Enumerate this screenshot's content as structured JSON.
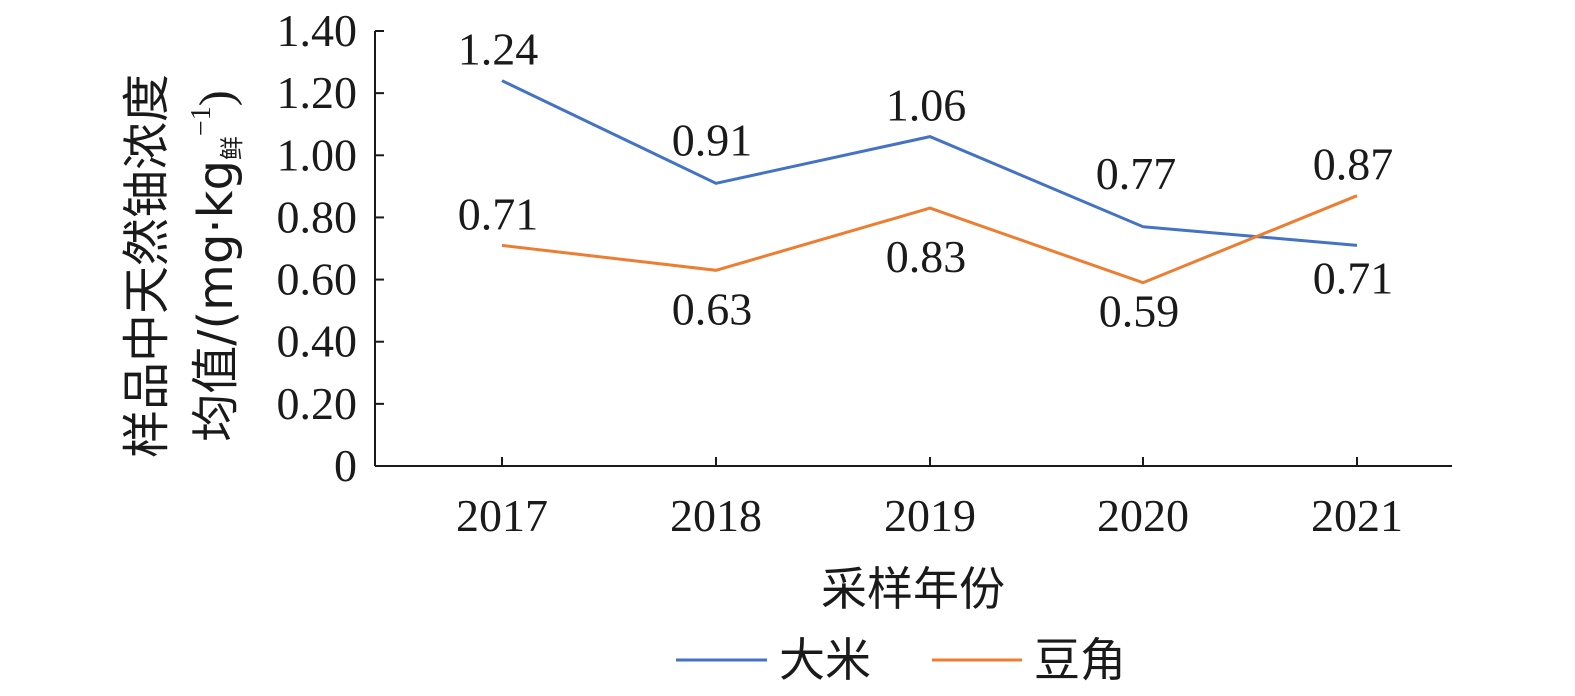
{
  "chart_data": {
    "type": "line",
    "categories": [
      "2017",
      "2018",
      "2019",
      "2020",
      "2021"
    ],
    "series": [
      {
        "name": "大米",
        "values": [
          1.24,
          0.91,
          1.06,
          0.77,
          0.71
        ],
        "color": "#4472C4"
      },
      {
        "name": "豆角",
        "values": [
          0.71,
          0.63,
          0.83,
          0.59,
          0.87
        ],
        "color": "#ED7D31"
      }
    ],
    "ylim": [
      0,
      1.4
    ],
    "yticks": [
      "0",
      "0.20",
      "0.40",
      "0.60",
      "0.80",
      "1.00",
      "1.20",
      "1.40"
    ],
    "xlabel": "采样年份",
    "ylabel_line1": "样品中天然铀浓度",
    "ylabel_line2_prefix": "均值/(mg·kg",
    "ylabel_line2_sub": "鲜",
    "ylabel_line2_sup": "−1",
    "ylabel_line2_suffix": ")",
    "data_labels": [
      [
        "1.24",
        "0.91",
        "1.06",
        "0.77",
        "0.71"
      ],
      [
        "0.71",
        "0.63",
        "0.83",
        "0.59",
        "0.87"
      ]
    ],
    "legend_position": "bottom",
    "grid": false
  }
}
